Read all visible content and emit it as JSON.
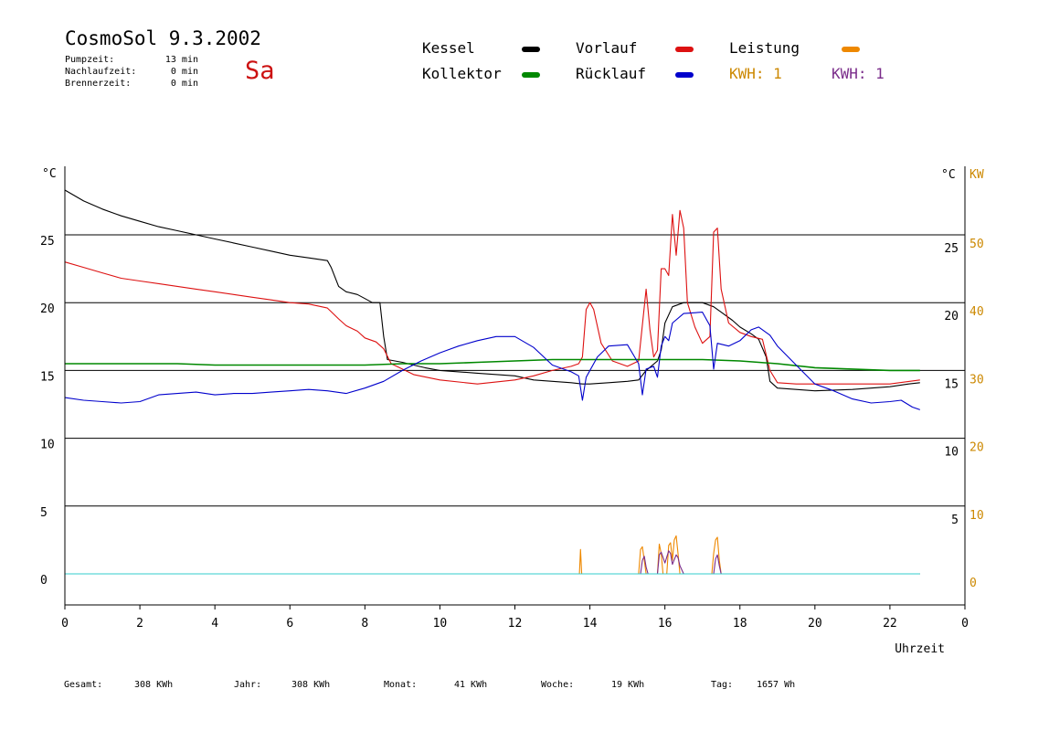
{
  "header": {
    "title": "CosmoSol 9.3.2002",
    "day": "Sa",
    "stats": [
      {
        "label": "Pumpzeit:",
        "value": "13 min"
      },
      {
        "label": "Nachlaufzeit:",
        "value": "0 min"
      },
      {
        "label": "Brennerzeit:",
        "value": "0 min"
      }
    ]
  },
  "legend": {
    "items": [
      {
        "label": "Kessel",
        "color": "#000000"
      },
      {
        "label": "Vorlauf",
        "color": "#dd1111"
      },
      {
        "label": "Leistung",
        "color": "#ee8800"
      },
      {
        "label": "Kollektor",
        "color": "#008800"
      },
      {
        "label": "Rücklauf",
        "color": "#0000cc"
      }
    ],
    "kwh": [
      {
        "label": "KWH: 1",
        "color": "#cc8800"
      },
      {
        "label": "KWH: 1",
        "color": "#7a2c8a"
      }
    ]
  },
  "footer": [
    {
      "label": "Gesamt:",
      "value": "308 KWh"
    },
    {
      "label": "Jahr:",
      "value": "308 KWh"
    },
    {
      "label": "Monat:",
      "value": "41 KWh"
    },
    {
      "label": "Woche:",
      "value": "19 KWh"
    },
    {
      "label": "Tag:",
      "value": "1657 Wh"
    }
  ],
  "chart_data": {
    "type": "line",
    "xlabel": "Uhrzeit",
    "ylabel_left": "°C",
    "ylabel_right": [
      "°C",
      "KW"
    ],
    "xlim": [
      0,
      24
    ],
    "ylim": [
      -2.3,
      30
    ],
    "x_ticks": [
      "0",
      "2",
      "4",
      "6",
      "8",
      "10",
      "12",
      "14",
      "16",
      "18",
      "20",
      "22",
      "0"
    ],
    "y_ticks_left": [
      "25",
      "20",
      "15",
      "10",
      "5",
      "0"
    ],
    "y_ticks_right_c": [
      "25",
      "20",
      "15",
      "10",
      "5"
    ],
    "y_ticks_right_kw": [
      "50",
      "40",
      "30",
      "20",
      "10",
      "0"
    ],
    "gridlines": [
      25,
      20,
      15,
      10,
      5
    ],
    "series": [
      {
        "name": "Kessel",
        "color": "#000000",
        "points": [
          [
            0,
            28.3
          ],
          [
            0.5,
            27.5
          ],
          [
            1,
            26.9
          ],
          [
            1.5,
            26.4
          ],
          [
            2,
            26
          ],
          [
            2.5,
            25.6
          ],
          [
            3,
            25.3
          ],
          [
            3.5,
            25
          ],
          [
            4,
            24.7
          ],
          [
            4.5,
            24.4
          ],
          [
            5,
            24.1
          ],
          [
            5.5,
            23.8
          ],
          [
            6,
            23.5
          ],
          [
            6.5,
            23.3
          ],
          [
            7,
            23.1
          ],
          [
            7.1,
            22.6
          ],
          [
            7.3,
            21.2
          ],
          [
            7.5,
            20.8
          ],
          [
            7.8,
            20.6
          ],
          [
            8,
            20.3
          ],
          [
            8.2,
            20
          ],
          [
            8.4,
            20
          ],
          [
            8.5,
            17.5
          ],
          [
            8.6,
            15.8
          ],
          [
            8.8,
            15.7
          ],
          [
            9,
            15.6
          ],
          [
            9.3,
            15.4
          ],
          [
            9.6,
            15.2
          ],
          [
            10,
            15
          ],
          [
            11,
            14.8
          ],
          [
            12,
            14.6
          ],
          [
            12.5,
            14.3
          ],
          [
            13,
            14.2
          ],
          [
            13.5,
            14.1
          ],
          [
            13.8,
            14
          ],
          [
            14,
            14
          ],
          [
            14.5,
            14.1
          ],
          [
            15,
            14.2
          ],
          [
            15.3,
            14.3
          ],
          [
            15.5,
            15
          ],
          [
            15.8,
            15.7
          ],
          [
            15.9,
            16.5
          ],
          [
            16,
            18.5
          ],
          [
            16.2,
            19.7
          ],
          [
            16.5,
            20
          ],
          [
            17,
            20
          ],
          [
            17.3,
            19.7
          ],
          [
            17.5,
            19.3
          ],
          [
            17.8,
            18.7
          ],
          [
            18,
            18.2
          ],
          [
            18.3,
            17.7
          ],
          [
            18.5,
            17.3
          ],
          [
            18.7,
            16
          ],
          [
            18.8,
            14.2
          ],
          [
            19,
            13.7
          ],
          [
            19.5,
            13.6
          ],
          [
            20,
            13.5
          ],
          [
            21,
            13.6
          ],
          [
            22,
            13.8
          ],
          [
            22.5,
            14
          ],
          [
            22.8,
            14.1
          ]
        ]
      },
      {
        "name": "Vorlauf",
        "color": "#dd1111",
        "points": [
          [
            0,
            23
          ],
          [
            0.5,
            22.6
          ],
          [
            1,
            22.2
          ],
          [
            1.5,
            21.8
          ],
          [
            2,
            21.6
          ],
          [
            2.5,
            21.4
          ],
          [
            3,
            21.2
          ],
          [
            3.5,
            21
          ],
          [
            4,
            20.8
          ],
          [
            4.5,
            20.6
          ],
          [
            5,
            20.4
          ],
          [
            5.5,
            20.2
          ],
          [
            6,
            20
          ],
          [
            6.5,
            19.9
          ],
          [
            7,
            19.6
          ],
          [
            7.3,
            18.8
          ],
          [
            7.5,
            18.3
          ],
          [
            7.8,
            17.9
          ],
          [
            8,
            17.4
          ],
          [
            8.3,
            17.1
          ],
          [
            8.5,
            16.6
          ],
          [
            8.7,
            15.5
          ],
          [
            9,
            15.1
          ],
          [
            9.3,
            14.7
          ],
          [
            10,
            14.3
          ],
          [
            11,
            14
          ],
          [
            12,
            14.3
          ],
          [
            12.5,
            14.6
          ],
          [
            13,
            15
          ],
          [
            13.5,
            15.3
          ],
          [
            13.7,
            15.5
          ],
          [
            13.8,
            16
          ],
          [
            13.9,
            19.5
          ],
          [
            14,
            20
          ],
          [
            14.1,
            19.5
          ],
          [
            14.3,
            17
          ],
          [
            14.6,
            15.7
          ],
          [
            15,
            15.3
          ],
          [
            15.3,
            15.7
          ],
          [
            15.5,
            21
          ],
          [
            15.6,
            18
          ],
          [
            15.7,
            16
          ],
          [
            15.8,
            16.5
          ],
          [
            15.9,
            22.5
          ],
          [
            16,
            22.5
          ],
          [
            16.1,
            22
          ],
          [
            16.2,
            26.5
          ],
          [
            16.3,
            23.5
          ],
          [
            16.4,
            26.8
          ],
          [
            16.5,
            25.5
          ],
          [
            16.6,
            20
          ],
          [
            16.8,
            18.2
          ],
          [
            17,
            17
          ],
          [
            17.2,
            17.5
          ],
          [
            17.3,
            25.2
          ],
          [
            17.4,
            25.5
          ],
          [
            17.5,
            21
          ],
          [
            17.7,
            18.5
          ],
          [
            18,
            17.8
          ],
          [
            18.3,
            17.5
          ],
          [
            18.6,
            17.3
          ],
          [
            18.8,
            15
          ],
          [
            19,
            14.1
          ],
          [
            19.5,
            14
          ],
          [
            20,
            14
          ],
          [
            21,
            14
          ],
          [
            22,
            14
          ],
          [
            22.8,
            14.3
          ]
        ]
      },
      {
        "name": "Kollektor",
        "color": "#008800",
        "points": [
          [
            0,
            15.5
          ],
          [
            1,
            15.5
          ],
          [
            2,
            15.5
          ],
          [
            3,
            15.5
          ],
          [
            4,
            15.4
          ],
          [
            5,
            15.4
          ],
          [
            6,
            15.4
          ],
          [
            7,
            15.4
          ],
          [
            8,
            15.4
          ],
          [
            9,
            15.5
          ],
          [
            10,
            15.5
          ],
          [
            11,
            15.6
          ],
          [
            12,
            15.7
          ],
          [
            13,
            15.8
          ],
          [
            14,
            15.8
          ],
          [
            15,
            15.8
          ],
          [
            16,
            15.8
          ],
          [
            17,
            15.8
          ],
          [
            18,
            15.7
          ],
          [
            19,
            15.5
          ],
          [
            20,
            15.2
          ],
          [
            21,
            15.1
          ],
          [
            22,
            15
          ],
          [
            22.8,
            15
          ]
        ]
      },
      {
        "name": "Rücklauf",
        "color": "#0000cc",
        "points": [
          [
            0,
            13
          ],
          [
            0.5,
            12.8
          ],
          [
            1,
            12.7
          ],
          [
            1.5,
            12.6
          ],
          [
            2,
            12.7
          ],
          [
            2.5,
            13.2
          ],
          [
            3,
            13.3
          ],
          [
            3.5,
            13.4
          ],
          [
            4,
            13.2
          ],
          [
            4.5,
            13.3
          ],
          [
            5,
            13.3
          ],
          [
            5.5,
            13.4
          ],
          [
            6,
            13.5
          ],
          [
            6.5,
            13.6
          ],
          [
            7,
            13.5
          ],
          [
            7.5,
            13.3
          ],
          [
            8,
            13.7
          ],
          [
            8.5,
            14.2
          ],
          [
            9,
            15
          ],
          [
            9.5,
            15.7
          ],
          [
            10,
            16.3
          ],
          [
            10.5,
            16.8
          ],
          [
            11,
            17.2
          ],
          [
            11.5,
            17.5
          ],
          [
            12,
            17.5
          ],
          [
            12.5,
            16.7
          ],
          [
            13,
            15.4
          ],
          [
            13.5,
            14.9
          ],
          [
            13.7,
            14.6
          ],
          [
            13.8,
            12.8
          ],
          [
            13.9,
            14.5
          ],
          [
            14.2,
            16
          ],
          [
            14.5,
            16.8
          ],
          [
            15,
            16.9
          ],
          [
            15.3,
            15.5
          ],
          [
            15.4,
            13.2
          ],
          [
            15.5,
            15.1
          ],
          [
            15.7,
            15.3
          ],
          [
            15.8,
            14.5
          ],
          [
            15.9,
            16.8
          ],
          [
            16,
            17.5
          ],
          [
            16.1,
            17.2
          ],
          [
            16.2,
            18.5
          ],
          [
            16.5,
            19.2
          ],
          [
            17,
            19.3
          ],
          [
            17.2,
            18.3
          ],
          [
            17.3,
            15.1
          ],
          [
            17.4,
            17
          ],
          [
            17.7,
            16.8
          ],
          [
            18,
            17.2
          ],
          [
            18.3,
            18
          ],
          [
            18.5,
            18.2
          ],
          [
            18.8,
            17.6
          ],
          [
            19,
            16.8
          ],
          [
            19.5,
            15.4
          ],
          [
            20,
            14
          ],
          [
            20.5,
            13.5
          ],
          [
            21,
            12.9
          ],
          [
            21.5,
            12.6
          ],
          [
            22,
            12.7
          ],
          [
            22.3,
            12.8
          ],
          [
            22.6,
            12.3
          ],
          [
            22.8,
            12.1
          ]
        ]
      },
      {
        "name": "Leistung",
        "color": "#ee8800",
        "points": [
          [
            0,
            0
          ],
          [
            13.72,
            0
          ],
          [
            13.75,
            1.8
          ],
          [
            13.78,
            0
          ],
          [
            15.3,
            0
          ],
          [
            15.35,
            1.8
          ],
          [
            15.4,
            2
          ],
          [
            15.45,
            1
          ],
          [
            15.5,
            0
          ],
          [
            15.8,
            0
          ],
          [
            15.85,
            2.2
          ],
          [
            15.9,
            1.5
          ],
          [
            15.95,
            0
          ],
          [
            16.05,
            0
          ],
          [
            16.1,
            2.1
          ],
          [
            16.15,
            2.3
          ],
          [
            16.2,
            1
          ],
          [
            16.25,
            2.5
          ],
          [
            16.3,
            2.8
          ],
          [
            16.35,
            1.5
          ],
          [
            16.4,
            0
          ],
          [
            17.25,
            0
          ],
          [
            17.3,
            1.5
          ],
          [
            17.35,
            2.5
          ],
          [
            17.4,
            2.7
          ],
          [
            17.45,
            1
          ],
          [
            17.5,
            0
          ],
          [
            22.8,
            0
          ]
        ]
      },
      {
        "name": "KWH",
        "color": "#7a2c8a",
        "points": [
          [
            0,
            0
          ],
          [
            15.35,
            0
          ],
          [
            15.4,
            1
          ],
          [
            15.45,
            1.3
          ],
          [
            15.5,
            0.5
          ],
          [
            15.55,
            0
          ],
          [
            15.8,
            0
          ],
          [
            15.85,
            1.4
          ],
          [
            15.9,
            1.6
          ],
          [
            16,
            0.8
          ],
          [
            16.1,
            1.7
          ],
          [
            16.15,
            1.5
          ],
          [
            16.2,
            0.7
          ],
          [
            16.3,
            1.4
          ],
          [
            16.35,
            1.2
          ],
          [
            16.4,
            0.6
          ],
          [
            16.5,
            0
          ],
          [
            17.3,
            0
          ],
          [
            17.35,
            1.1
          ],
          [
            17.4,
            1.4
          ],
          [
            17.45,
            0.6
          ],
          [
            17.5,
            0
          ],
          [
            22.8,
            0
          ]
        ]
      },
      {
        "name": "Zero",
        "color": "#33cccc",
        "points": [
          [
            0,
            0
          ],
          [
            22.8,
            0
          ]
        ]
      }
    ]
  }
}
